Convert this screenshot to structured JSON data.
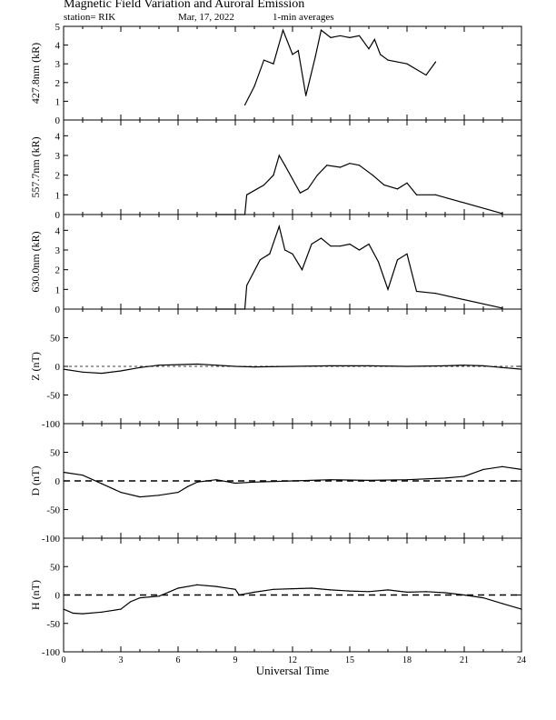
{
  "header": {
    "title": "Magnetic Field Variation and Auroral Emission",
    "station": "station= RIK",
    "date": "Mar, 17, 2022",
    "averaging": "1-min averages"
  },
  "colors": {
    "line": "#000000",
    "background": "#ffffff"
  },
  "chart_data": [
    {
      "type": "line",
      "ylabel": "427.8nm (kR)",
      "xlim": [
        0,
        24
      ],
      "ylim": [
        0,
        5
      ],
      "yticks": [
        "0",
        "1",
        "2",
        "3",
        "4",
        "5"
      ],
      "x": [
        9.5,
        10.0,
        10.5,
        11.0,
        11.5,
        12.0,
        12.3,
        12.7,
        13.2,
        13.5,
        14.0,
        14.5,
        15.0,
        15.5,
        16.0,
        16.3,
        16.6,
        17.0,
        18.0,
        19.0,
        19.5
      ],
      "values": [
        0.8,
        1.8,
        3.2,
        3.0,
        4.8,
        3.5,
        3.7,
        1.3,
        3.4,
        4.8,
        4.4,
        4.5,
        4.4,
        4.5,
        3.8,
        4.3,
        3.5,
        3.2,
        3.0,
        2.4,
        3.1
      ]
    },
    {
      "type": "line",
      "ylabel": "557.7nm (kR)",
      "xlim": [
        0,
        24
      ],
      "ylim": [
        0,
        4.8
      ],
      "yticks": [
        "0",
        "1",
        "2",
        "3",
        "4"
      ],
      "x": [
        8.0,
        9.5,
        9.6,
        10.5,
        11.0,
        11.3,
        11.6,
        12.0,
        12.4,
        12.8,
        13.3,
        13.8,
        14.5,
        15.0,
        15.5,
        16.2,
        16.8,
        17.5,
        18.0,
        18.5,
        19.5,
        23.0
      ],
      "values": [
        0.0,
        0.0,
        1.0,
        1.5,
        2.0,
        3.0,
        2.5,
        1.8,
        1.1,
        1.3,
        2.0,
        2.5,
        2.4,
        2.6,
        2.5,
        2.0,
        1.5,
        1.3,
        1.6,
        1.0,
        1.0,
        0.05
      ]
    },
    {
      "type": "line",
      "ylabel": "630.0nm (kR)",
      "xlim": [
        0,
        24
      ],
      "ylim": [
        0,
        4.8
      ],
      "yticks": [
        "0",
        "1",
        "2",
        "3",
        "4"
      ],
      "x": [
        8.0,
        9.5,
        9.6,
        10.3,
        10.8,
        11.3,
        11.6,
        12.0,
        12.5,
        13.0,
        13.5,
        14.0,
        14.5,
        15.0,
        15.5,
        16.0,
        16.5,
        17.0,
        17.5,
        18.0,
        18.5,
        19.5,
        23.0
      ],
      "values": [
        0.0,
        0.0,
        1.2,
        2.5,
        2.8,
        4.2,
        3.0,
        2.8,
        2.0,
        3.3,
        3.6,
        3.2,
        3.2,
        3.3,
        3.0,
        3.3,
        2.4,
        1.0,
        2.5,
        2.8,
        0.9,
        0.8,
        0.05
      ]
    },
    {
      "type": "line",
      "ylabel": "Z (nT)",
      "xlim": [
        0,
        24
      ],
      "ylim": [
        -100,
        100
      ],
      "yticks": [
        "-100",
        "-50",
        "0",
        "50"
      ],
      "x": [
        0,
        1,
        2,
        3,
        4,
        5,
        6,
        7,
        8,
        9,
        10,
        12,
        14,
        16,
        18,
        20,
        21,
        22,
        23,
        24
      ],
      "values": [
        -5,
        -10,
        -12,
        -8,
        -2,
        2,
        3,
        4,
        2,
        0,
        -1,
        0,
        1,
        1,
        0,
        1,
        2,
        1,
        -2,
        -5
      ]
    },
    {
      "type": "line",
      "ylabel": "D (nT)",
      "xlim": [
        0,
        24
      ],
      "ylim": [
        -100,
        100
      ],
      "yticks": [
        "-100",
        "-50",
        "0",
        "50"
      ],
      "x": [
        0,
        1,
        2,
        3,
        4,
        5,
        6,
        6.5,
        7,
        8,
        9,
        10,
        12,
        14,
        16,
        18,
        20,
        21,
        22,
        23,
        24
      ],
      "values": [
        15,
        10,
        -5,
        -20,
        -28,
        -25,
        -20,
        -10,
        -2,
        2,
        -4,
        -2,
        0,
        2,
        1,
        2,
        5,
        8,
        20,
        25,
        20
      ]
    },
    {
      "type": "line",
      "ylabel": "H (nT)",
      "xlim": [
        0,
        24
      ],
      "ylim": [
        -100,
        100
      ],
      "yticks": [
        "-100",
        "-50",
        "0",
        "50"
      ],
      "x": [
        0,
        0.5,
        1,
        2,
        3,
        3.5,
        4,
        5,
        5.5,
        6,
        7,
        8,
        9,
        9.2,
        10,
        11,
        12,
        13,
        14,
        15,
        16,
        17,
        18,
        19,
        20,
        21,
        22,
        23,
        24
      ],
      "values": [
        -25,
        -32,
        -33,
        -30,
        -25,
        -12,
        -5,
        -2,
        5,
        12,
        18,
        15,
        10,
        0,
        5,
        10,
        11,
        12,
        9,
        7,
        6,
        9,
        5,
        6,
        4,
        0,
        -5,
        -15,
        -25
      ],
      "xlabel": "Universal Time",
      "xticks": [
        "0",
        "3",
        "6",
        "9",
        "12",
        "15",
        "18",
        "21",
        "24"
      ]
    }
  ]
}
